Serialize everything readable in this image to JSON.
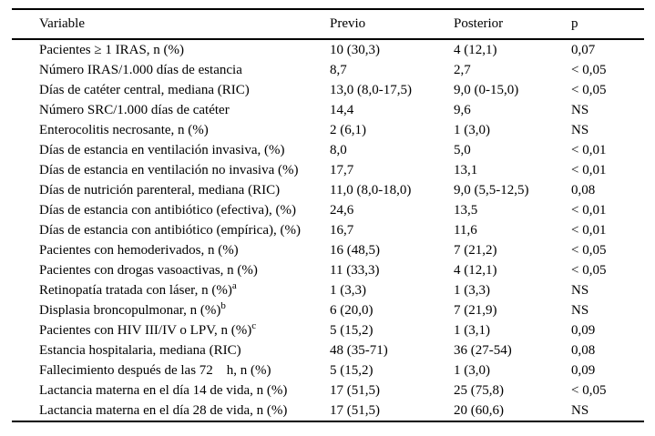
{
  "table": {
    "columns": [
      "Variable",
      "Previo",
      "Posterior",
      "p"
    ],
    "rows": [
      {
        "variable": "Pacientes ≥ 1 IRAS, n (%)",
        "sup": "",
        "previo": "10 (30,3)",
        "posterior": "4 (12,1)",
        "p": "0,07"
      },
      {
        "variable": "Número IRAS/1.000 días de estancia",
        "sup": "",
        "previo": "8,7",
        "posterior": "2,7",
        "p": "< 0,05"
      },
      {
        "variable": "Días de catéter central, mediana (RIC)",
        "sup": "",
        "previo": "13,0 (8,0-17,5)",
        "posterior": "9,0 (0-15,0)",
        "p": "< 0,05"
      },
      {
        "variable": "Número SRC/1.000 días de catéter",
        "sup": "",
        "previo": "14,4",
        "posterior": "9,6",
        "p": "NS"
      },
      {
        "variable": "Enterocolitis necrosante, n (%)",
        "sup": "",
        "previo": "2 (6,1)",
        "posterior": "1 (3,0)",
        "p": "NS"
      },
      {
        "variable": "Días de estancia en ventilación invasiva, (%)",
        "sup": "",
        "previo": "8,0",
        "posterior": "5,0",
        "p": "< 0,01"
      },
      {
        "variable": "Días de estancia en ventilación no invasiva (%)",
        "sup": "",
        "previo": "17,7",
        "posterior": "13,1",
        "p": "< 0,01"
      },
      {
        "variable": "Días de nutrición parenteral, mediana (RIC)",
        "sup": "",
        "previo": "11,0 (8,0-18,0)",
        "posterior": "9,0 (5,5-12,5)",
        "p": "0,08"
      },
      {
        "variable": "Días de estancia con antibiótico (efectiva), (%)",
        "sup": "",
        "previo": "24,6",
        "posterior": "13,5",
        "p": "< 0,01"
      },
      {
        "variable": "Días de estancia con antibiótico (empírica), (%)",
        "sup": "",
        "previo": "16,7",
        "posterior": "11,6",
        "p": "< 0,01"
      },
      {
        "variable": "Pacientes con hemoderivados, n (%)",
        "sup": "",
        "previo": "16 (48,5)",
        "posterior": "7 (21,2)",
        "p": "< 0,05"
      },
      {
        "variable": "Pacientes con drogas vasoactivas, n (%)",
        "sup": "",
        "previo": "11 (33,3)",
        "posterior": "4 (12,1)",
        "p": "< 0,05"
      },
      {
        "variable": "Retinopatía tratada con láser, n (%)",
        "sup": "a",
        "previo": "1 (3,3)",
        "posterior": "1 (3,3)",
        "p": "NS"
      },
      {
        "variable": "Displasia broncopulmonar, n (%)",
        "sup": "b",
        "previo": "6 (20,0)",
        "posterior": "7 (21,9)",
        "p": "NS"
      },
      {
        "variable": "Pacientes con HIV III/IV o LPV, n (%)",
        "sup": "c",
        "previo": "5 (15,2)",
        "posterior": "1 (3,1)",
        "p": "0,09"
      },
      {
        "variable": "Estancia hospitalaria, mediana (RIC)",
        "sup": "",
        "previo": "48 (35-71)",
        "posterior": "36 (27-54)",
        "p": "0,08"
      },
      {
        "variable": "Fallecimiento después de las 72    h, n (%)",
        "sup": "",
        "previo": "5 (15,2)",
        "posterior": "1 (3,0)",
        "p": "0,09"
      },
      {
        "variable": "Lactancia materna en el día 14 de vida, n (%)",
        "sup": "",
        "previo": "17 (51,5)",
        "posterior": "25 (75,8)",
        "p": "< 0,05"
      },
      {
        "variable": "Lactancia materna en el día 28 de vida, n (%)",
        "sup": "",
        "previo": "17 (51,5)",
        "posterior": "20 (60,6)",
        "p": "NS"
      }
    ]
  }
}
